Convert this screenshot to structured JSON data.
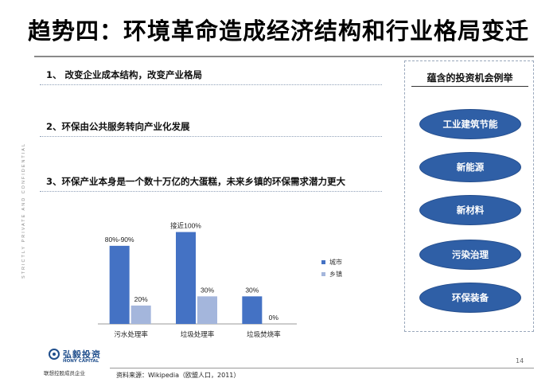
{
  "slide": {
    "title": "趋势四：环境革命造成经济结构和行业格局变迁",
    "side_text": "STRICTLY PRIVATE AND CONFIDENTIAL",
    "page_number": "14",
    "source": "资料来源：Wikipedia（欧盟人口，2011）"
  },
  "points": [
    "1、 改变企业成本结构，改变产业格局",
    "2、环保由公共服务转向产业化发展",
    "3、环保产业本身是一个数十万亿的大蛋糕，未来乡镇的环保需求潜力更大"
  ],
  "panel": {
    "title": "蕴含的投资机会例举",
    "items": [
      "工业建筑节能",
      "新能源",
      "新材料",
      "污染治理",
      "环保装备"
    ]
  },
  "logo": {
    "name_cn": "弘毅投资",
    "name_en": "HONY CAPITAL",
    "subtitle": "联想控股成员企业"
  },
  "colors": {
    "urban": "#4472c4",
    "rural": "#a4b6dc",
    "oval_fill": "#2f5fa6",
    "panel_border": "#9aa8bc"
  },
  "chart_data": {
    "type": "bar",
    "categories": [
      "污水处理率",
      "垃圾处理率",
      "垃圾焚烧率"
    ],
    "series": [
      {
        "name": "城市",
        "values": [
          85,
          100,
          30
        ],
        "labels": [
          "80%-90%",
          "接近100%",
          "30%"
        ]
      },
      {
        "name": "乡镇",
        "values": [
          20,
          30,
          0
        ],
        "labels": [
          "20%",
          "30%",
          "0%"
        ]
      }
    ],
    "ylim": [
      0,
      110
    ],
    "grid": false,
    "legend": "right"
  }
}
